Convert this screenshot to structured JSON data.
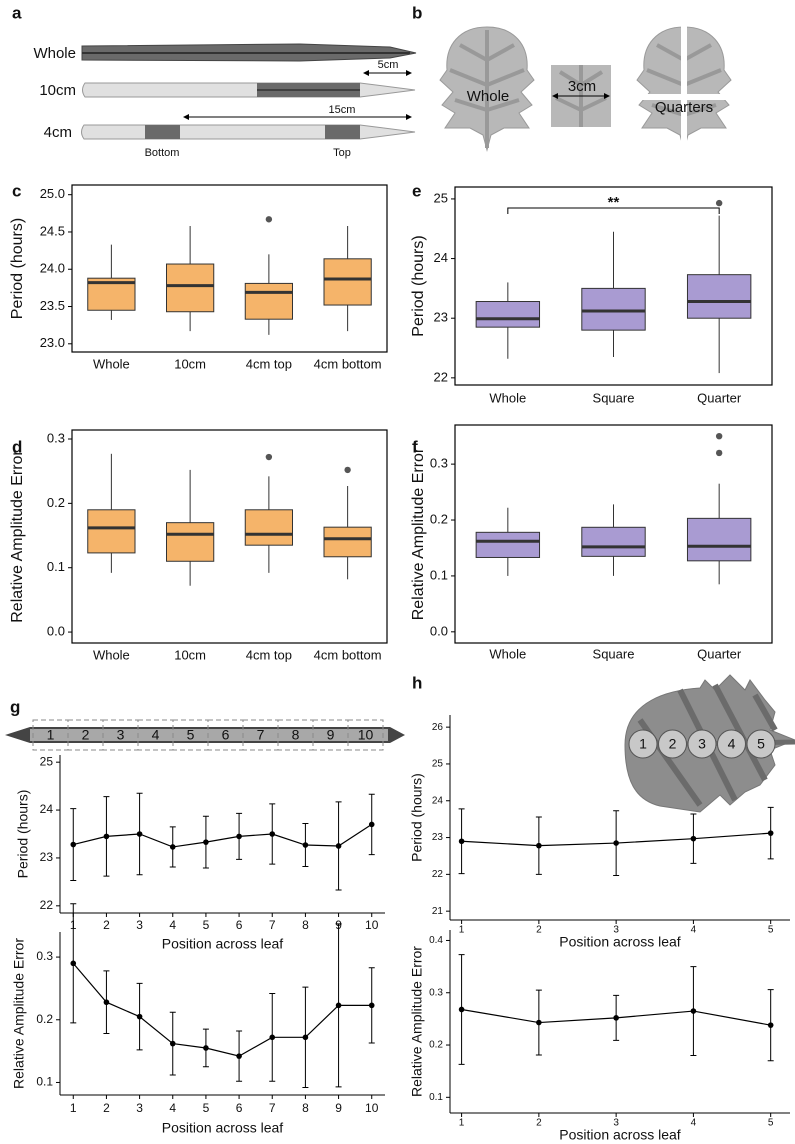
{
  "diagram_a": {
    "panel": "a",
    "rows": [
      "Whole",
      "10cm",
      "4cm"
    ],
    "scale_short": "5cm",
    "scale_long": "15cm",
    "segment_bottom": "Bottom",
    "segment_top": "Top"
  },
  "diagram_b": {
    "panel": "b",
    "whole": "Whole",
    "square": "3cm",
    "quarters": "Quarters"
  },
  "diagram_g": {
    "segments": [
      "1",
      "2",
      "3",
      "4",
      "5",
      "6",
      "7",
      "8",
      "9",
      "10"
    ]
  },
  "diagram_h": {
    "segments": [
      "1",
      "2",
      "3",
      "4",
      "5"
    ]
  },
  "chart_data": [
    {
      "type": "boxplot",
      "panel": "c",
      "ylabel": "Period (hours)",
      "color": "#f5b46a",
      "categories": [
        "Whole",
        "10cm",
        "4cm top",
        "4cm bottom"
      ],
      "ylim": [
        22.89,
        25.13
      ],
      "yticks": [
        {
          "value": 23,
          "label": "23.0"
        },
        23.5,
        {
          "value": 24,
          "label": "24.0"
        },
        24.5,
        {
          "value": 25,
          "label": "25.0"
        }
      ],
      "boxes": [
        {
          "whisker_low": 23.32,
          "q1": 23.45,
          "median": 23.82,
          "q3": 23.88,
          "whisker_high": 24.33,
          "outliers": []
        },
        {
          "whisker_low": 23.17,
          "q1": 23.43,
          "median": 23.78,
          "q3": 24.07,
          "whisker_high": 24.58,
          "outliers": []
        },
        {
          "whisker_low": 23.12,
          "q1": 23.33,
          "median": 23.69,
          "q3": 23.81,
          "whisker_high": 24.2,
          "outliers": [
            24.67
          ]
        },
        {
          "whisker_low": 23.17,
          "q1": 23.52,
          "median": 23.87,
          "q3": 24.14,
          "whisker_high": 24.58,
          "outliers": []
        }
      ]
    },
    {
      "type": "boxplot",
      "panel": "d",
      "ylabel": "Relative Amplitude Error",
      "color": "#f5b46a",
      "categories": [
        "Whole",
        "10cm",
        "4cm top",
        "4cm bottom"
      ],
      "ylim": [
        -0.017,
        0.314
      ],
      "yticks": [
        {
          "value": 0,
          "label": "0.0"
        },
        0.1,
        0.2,
        0.3
      ],
      "boxes": [
        {
          "whisker_low": 0.092,
          "q1": 0.123,
          "median": 0.162,
          "q3": 0.19,
          "whisker_high": 0.277,
          "outliers": []
        },
        {
          "whisker_low": 0.072,
          "q1": 0.11,
          "median": 0.152,
          "q3": 0.17,
          "whisker_high": 0.252,
          "outliers": []
        },
        {
          "whisker_low": 0.092,
          "q1": 0.135,
          "median": 0.152,
          "q3": 0.19,
          "whisker_high": 0.242,
          "outliers": [
            0.272
          ]
        },
        {
          "whisker_low": 0.082,
          "q1": 0.117,
          "median": 0.145,
          "q3": 0.163,
          "whisker_high": 0.227,
          "outliers": [
            0.252
          ]
        }
      ]
    },
    {
      "type": "boxplot",
      "panel": "e",
      "ylabel": "Period (hours)",
      "color": "#a99bd2",
      "categories": [
        "Whole",
        "Square",
        "Quarter"
      ],
      "annotation": "**",
      "ylim": [
        21.88,
        25.2
      ],
      "yticks": [
        22,
        23,
        24,
        25
      ],
      "boxes": [
        {
          "whisker_low": 22.32,
          "q1": 22.85,
          "median": 22.99,
          "q3": 23.28,
          "whisker_high": 23.6,
          "outliers": []
        },
        {
          "whisker_low": 22.35,
          "q1": 22.8,
          "median": 23.12,
          "q3": 23.5,
          "whisker_high": 24.45,
          "outliers": []
        },
        {
          "whisker_low": 22.08,
          "q1": 23.0,
          "median": 23.28,
          "q3": 23.73,
          "whisker_high": 24.72,
          "outliers": [
            24.93
          ]
        }
      ]
    },
    {
      "type": "boxplot",
      "panel": "f",
      "ylabel": "Relative Amplitude Error",
      "color": "#a99bd2",
      "categories": [
        "Whole",
        "Square",
        "Quarter"
      ],
      "ylim": [
        -0.02,
        0.37
      ],
      "yticks": [
        {
          "value": 0,
          "label": "0.0"
        },
        0.1,
        0.2,
        0.3
      ],
      "boxes": [
        {
          "whisker_low": 0.1,
          "q1": 0.133,
          "median": 0.162,
          "q3": 0.178,
          "whisker_high": 0.222,
          "outliers": []
        },
        {
          "whisker_low": 0.1,
          "q1": 0.135,
          "median": 0.152,
          "q3": 0.187,
          "whisker_high": 0.228,
          "outliers": []
        },
        {
          "whisker_low": 0.085,
          "q1": 0.127,
          "median": 0.153,
          "q3": 0.203,
          "whisker_high": 0.265,
          "outliers": [
            0.32,
            0.35
          ]
        }
      ]
    },
    {
      "type": "errorline",
      "panel": "g",
      "ylabel": "Period (hours)",
      "xlabel": "Position across leaf",
      "color": "#000000",
      "x": [
        1,
        2,
        3,
        4,
        5,
        6,
        7,
        8,
        9,
        10
      ],
      "values": [
        23.28,
        23.45,
        23.5,
        23.23,
        23.33,
        23.45,
        23.5,
        23.27,
        23.25,
        23.7
      ],
      "errors": [
        0.75,
        0.83,
        0.85,
        0.42,
        0.54,
        0.48,
        0.63,
        0.45,
        0.92,
        0.63
      ],
      "xlim": [
        0.6,
        10.4
      ],
      "xticks": [
        1,
        2,
        3,
        4,
        5,
        6,
        7,
        8,
        9,
        10
      ],
      "ylim": [
        21.85,
        25.15
      ],
      "yticks": [
        22,
        23,
        24,
        25
      ]
    },
    {
      "type": "errorline",
      "ylabel": "Relative Amplitude Error",
      "xlabel": "Position across leaf",
      "color": "#000000",
      "x": [
        1,
        2,
        3,
        4,
        5,
        6,
        7,
        8,
        9,
        10
      ],
      "values": [
        0.29,
        0.228,
        0.205,
        0.162,
        0.155,
        0.142,
        0.172,
        0.172,
        0.223,
        0.223
      ],
      "errors": [
        0.095,
        0.05,
        0.053,
        0.05,
        0.03,
        0.04,
        0.07,
        0.08,
        0.13,
        0.06
      ],
      "xlim": [
        0.6,
        10.4
      ],
      "xticks": [
        1,
        2,
        3,
        4,
        5,
        6,
        7,
        8,
        9,
        10
      ],
      "ylim": [
        0.08,
        0.34
      ],
      "yticks": [
        0.1,
        0.2,
        0.3
      ]
    },
    {
      "type": "errorline",
      "panel": "h",
      "ylabel": "Period (hours)",
      "xlabel": "Position across leaf",
      "color": "#000000",
      "x": [
        1,
        2,
        3,
        4,
        5
      ],
      "values": [
        22.9,
        22.78,
        22.85,
        22.97,
        23.12
      ],
      "errors": [
        0.88,
        0.78,
        0.88,
        0.67,
        0.7
      ],
      "xlim": [
        0.85,
        5.25
      ],
      "xticks": [
        1,
        2,
        3,
        4,
        5
      ],
      "ylim": [
        20.76,
        26.33
      ],
      "yticks": [
        21,
        22,
        23,
        24,
        25,
        26
      ]
    },
    {
      "type": "errorline",
      "ylabel": "Relative Amplitude Error",
      "xlabel": "Position across leaf",
      "color": "#000000",
      "x": [
        1,
        2,
        3,
        4,
        5
      ],
      "values": [
        0.268,
        0.243,
        0.252,
        0.265,
        0.238
      ],
      "errors": [
        0.105,
        0.062,
        0.043,
        0.085,
        0.068
      ],
      "xlim": [
        0.85,
        5.25
      ],
      "xticks": [
        1,
        2,
        3,
        4,
        5
      ],
      "ylim": [
        0.07,
        0.42
      ],
      "yticks": [
        0.1,
        0.2,
        0.3,
        0.4
      ]
    }
  ]
}
